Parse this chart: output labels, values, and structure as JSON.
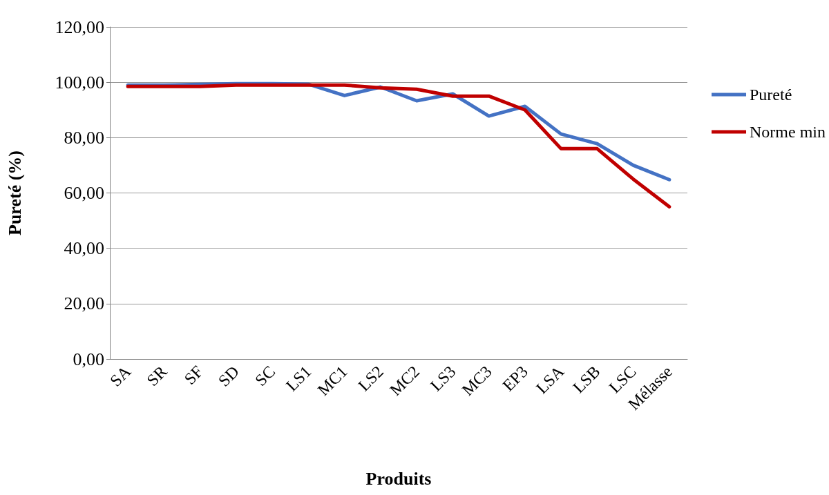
{
  "chart_data": {
    "type": "line",
    "xlabel": "Produits",
    "ylabel": "Pureté (%)",
    "categories": [
      "SA",
      "SR",
      "SF",
      "SD",
      "SC",
      "LS1",
      "MC1",
      "LS2",
      "MC2",
      "LS3",
      "MC3",
      "EP3",
      "LSA",
      "LSB",
      "LSC",
      "Mélasse"
    ],
    "series": [
      {
        "name": "Pureté",
        "color": "#4472c4",
        "values": [
          99,
          99,
          99.2,
          99.5,
          99.5,
          99.3,
          95.2,
          98.3,
          93.3,
          95.8,
          87.8,
          91.3,
          81.3,
          77.8,
          70,
          64.8
        ]
      },
      {
        "name": "Norme min",
        "color": "#c00000",
        "values": [
          98.5,
          98.5,
          98.5,
          99,
          99,
          99,
          99,
          98,
          97.5,
          95,
          95,
          90,
          76,
          76,
          65,
          55
        ]
      }
    ],
    "ylim": [
      0,
      120
    ],
    "yticks": [
      {
        "value": 0,
        "label": "0,00"
      },
      {
        "value": 20,
        "label": "20,00"
      },
      {
        "value": 40,
        "label": "40,00"
      },
      {
        "value": 60,
        "label": "60,00"
      },
      {
        "value": 80,
        "label": "80,00"
      },
      {
        "value": 100,
        "label": "100,00"
      },
      {
        "value": 120,
        "label": "120,00"
      }
    ],
    "grid": "y",
    "legend": "right",
    "marker": "none",
    "line_style": "solid"
  }
}
